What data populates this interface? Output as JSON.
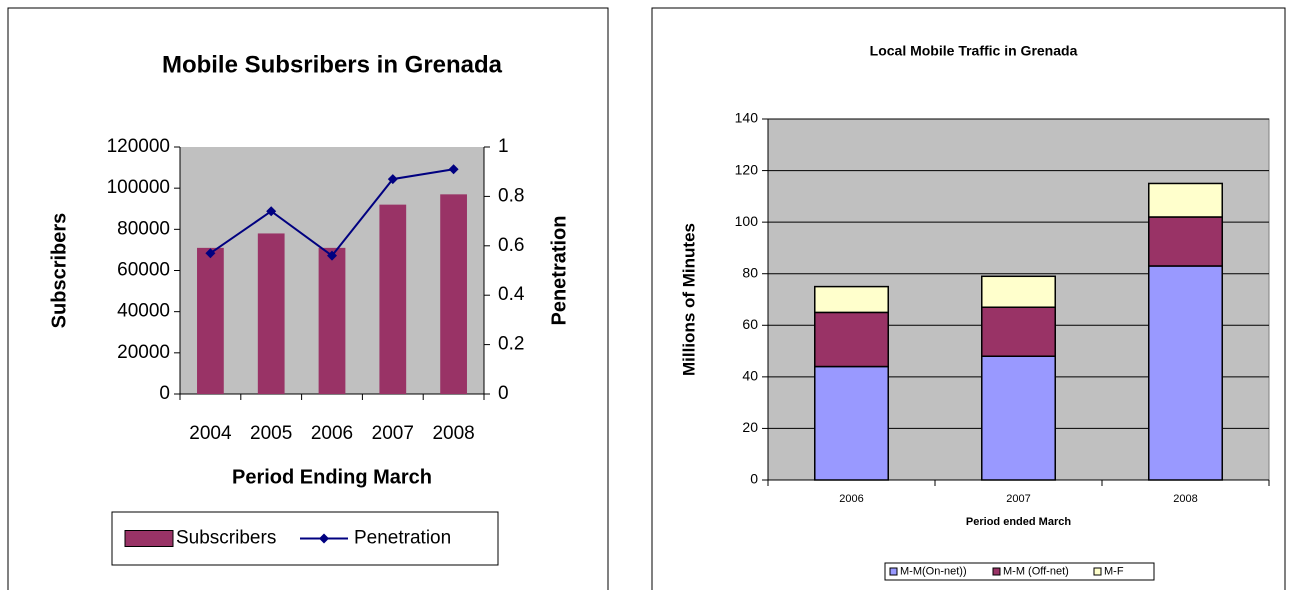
{
  "chart_data": [
    {
      "type": "bar",
      "title": "Mobile Subsribers in Grenada",
      "categories": [
        "2004",
        "2005",
        "2006",
        "2007",
        "2008"
      ],
      "series": [
        {
          "name": "Subscribers",
          "type": "bar",
          "color": "#993366",
          "values": [
            71000,
            78000,
            71000,
            92000,
            97000
          ]
        },
        {
          "name": "Penetration",
          "type": "line",
          "axis": "y2",
          "color": "#000080",
          "values": [
            0.57,
            0.74,
            0.56,
            0.87,
            0.91
          ]
        }
      ],
      "ylabel": "Subscribers",
      "y2label": "Penetration",
      "xlabel": "Period Ending March",
      "ylim": [
        0,
        120000
      ],
      "yticks": [
        0,
        20000,
        40000,
        60000,
        80000,
        100000,
        120000
      ],
      "y2lim": [
        0,
        1
      ],
      "y2ticks": [
        0,
        0.2,
        0.4,
        0.6,
        0.8,
        1
      ],
      "grid": false,
      "legend": "bottom"
    },
    {
      "type": "stacked_bar",
      "title": "Local Mobile Traffic in Grenada",
      "categories": [
        "2006",
        "2007",
        "2008"
      ],
      "series": [
        {
          "name": "M-M(On-net))",
          "color": "#9999ff",
          "values": [
            44,
            48,
            83
          ]
        },
        {
          "name": "M-M (Off-net)",
          "color": "#993366",
          "values": [
            21,
            19,
            19
          ]
        },
        {
          "name": "M-F",
          "color": "#ffffcc",
          "values": [
            10,
            12,
            13
          ]
        }
      ],
      "ylabel": "Millions of Minutes",
      "xlabel": "Period ended March",
      "ylim": [
        0,
        140
      ],
      "yticks": [
        0,
        20,
        40,
        60,
        80,
        100,
        120,
        140
      ],
      "grid": true,
      "legend": "bottom"
    }
  ]
}
